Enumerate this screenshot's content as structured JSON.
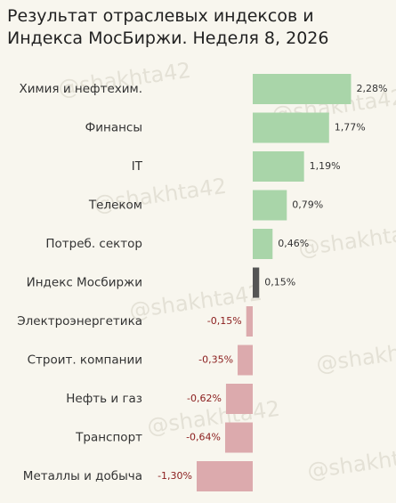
{
  "chart_data": {
    "type": "hbar",
    "title": "Результат отраслевых индексов и Индекса МосБиржи. Неделя 8, 2026",
    "watermark": "@shakhta42",
    "categories": [
      "Химия и нефтехим.",
      "Финансы",
      "IT",
      "Телеком",
      "Потреб. сектор",
      "Индекс Мосбиржи",
      "Электроэнергетика",
      "Строит. компании",
      "Нефть и газ",
      "Транспорт",
      "Металлы и добыча"
    ],
    "values": [
      2.28,
      1.77,
      1.19,
      0.79,
      0.46,
      0.15,
      -0.15,
      -0.35,
      -0.62,
      -0.64,
      -1.3
    ],
    "value_labels": [
      "2,28%",
      "1,77%",
      "1,19%",
      "0,79%",
      "0,46%",
      "0,15%",
      "-0,15%",
      "-0,35%",
      "-0,62%",
      "-0,64%",
      "-1,30%"
    ],
    "colors": [
      "#a9d5a9",
      "#a9d5a9",
      "#a9d5a9",
      "#a9d5a9",
      "#a9d5a9",
      "#555555",
      "#dcaaad",
      "#dcaaad",
      "#dcaaad",
      "#dcaaad",
      "#dcaaad"
    ]
  }
}
